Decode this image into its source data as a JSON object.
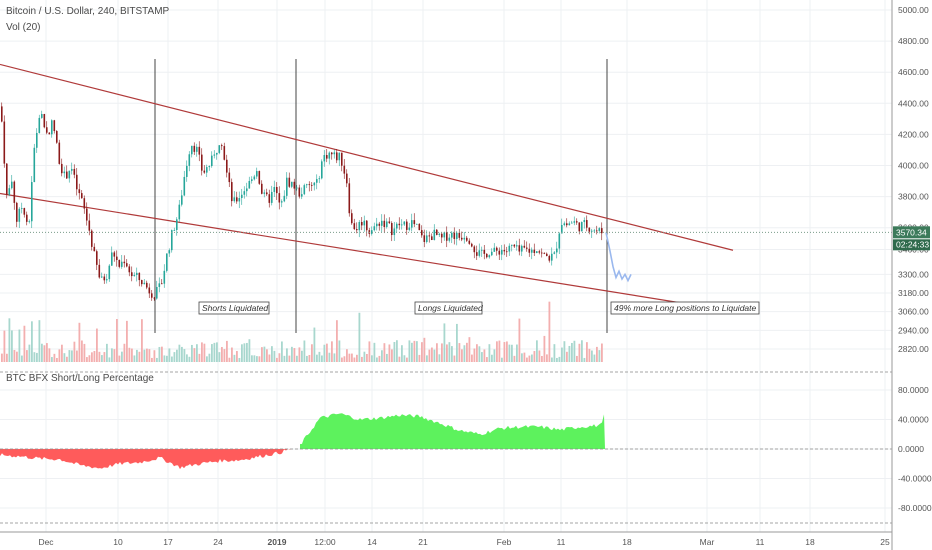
{
  "header": {
    "symbol_line": "Bitcoin / U.S. Dollar, 240, BITSTAMP",
    "volume_label": "Vol (20)"
  },
  "price_badge": {
    "price": "3570.34",
    "countdown": "02:24:33"
  },
  "annotations": {
    "shorts": "Shorts Liquidated",
    "longs": "Longs Liquidated",
    "forecast": "49% more Long positions to Liquidate"
  },
  "indicator": {
    "title": "BTC BFX Short/Long Percentage"
  },
  "colors": {
    "bull": "#26a69a",
    "bear": "#8b1a1a",
    "channel": "#b03a3a",
    "green_fill": "#5df25d",
    "red_fill": "#ff5b5b",
    "projection": "#9ab8ee",
    "badge_price": "#3c7a5a",
    "badge_time": "#2f6a4c"
  },
  "chart_data": [
    {
      "type": "candlestick",
      "title": "Bitcoin / U.S. Dollar, 240, BITSTAMP",
      "ylim": [
        2620,
        5000
      ],
      "y_ticks": [
        5000,
        4800,
        4600,
        4400,
        4200,
        4000,
        3800,
        3600,
        3460,
        3300,
        3180,
        3060,
        2940,
        2820
      ],
      "y_tick_labels": [
        "5000.00",
        "4800.00",
        "4600.00",
        "4400.00",
        "4200.00",
        "4000.00",
        "3800.00",
        "3600.00",
        "3460.00",
        "3300.00",
        "3180.00",
        "3060.00",
        "2940.00",
        "2820.00"
      ],
      "x_tick_labels": [
        "Dec",
        "10",
        "17",
        "24",
        "2019",
        "12:00",
        "14",
        "21",
        "Feb",
        "11",
        "18",
        "Mar",
        "11",
        "18",
        "25"
      ],
      "grid": true,
      "current_price": 3570.34,
      "price_path": [
        [
          0,
          4380
        ],
        [
          6,
          3800
        ],
        [
          11,
          3900
        ],
        [
          16,
          3650
        ],
        [
          22,
          3750
        ],
        [
          28,
          3600
        ],
        [
          34,
          4150
        ],
        [
          40,
          4350
        ],
        [
          46,
          4200
        ],
        [
          52,
          4280
        ],
        [
          58,
          4050
        ],
        [
          64,
          3920
        ],
        [
          70,
          4000
        ],
        [
          76,
          3850
        ],
        [
          82,
          3750
        ],
        [
          88,
          3600
        ],
        [
          94,
          3400
        ],
        [
          100,
          3250
        ],
        [
          106,
          3300
        ],
        [
          112,
          3450
        ],
        [
          118,
          3350
        ],
        [
          124,
          3400
        ],
        [
          130,
          3300
        ],
        [
          136,
          3280
        ],
        [
          142,
          3250
        ],
        [
          148,
          3200
        ],
        [
          154,
          3170
        ],
        [
          160,
          3220
        ],
        [
          166,
          3420
        ],
        [
          172,
          3580
        ],
        [
          178,
          3700
        ],
        [
          184,
          3950
        ],
        [
          190,
          4150
        ],
        [
          196,
          4100
        ],
        [
          202,
          3950
        ],
        [
          208,
          4000
        ],
        [
          214,
          4060
        ],
        [
          220,
          4200
        ],
        [
          226,
          3950
        ],
        [
          232,
          3750
        ],
        [
          238,
          3800
        ],
        [
          244,
          3850
        ],
        [
          250,
          3900
        ],
        [
          256,
          3980
        ],
        [
          262,
          3800
        ],
        [
          268,
          3780
        ],
        [
          274,
          3850
        ],
        [
          280,
          3720
        ],
        [
          286,
          3900
        ],
        [
          292,
          3880
        ],
        [
          298,
          3820
        ],
        [
          304,
          3850
        ],
        [
          310,
          3870
        ],
        [
          316,
          3880
        ],
        [
          322,
          4050
        ],
        [
          328,
          4080
        ],
        [
          334,
          4060
        ],
        [
          340,
          4050
        ],
        [
          346,
          3900
        ],
        [
          350,
          3620
        ],
        [
          356,
          3600
        ],
        [
          362,
          3650
        ],
        [
          368,
          3580
        ],
        [
          374,
          3600
        ],
        [
          380,
          3650
        ],
        [
          386,
          3620
        ],
        [
          392,
          3580
        ],
        [
          398,
          3620
        ],
        [
          404,
          3610
        ],
        [
          410,
          3640
        ],
        [
          416,
          3600
        ],
        [
          422,
          3520
        ],
        [
          428,
          3540
        ],
        [
          434,
          3560
        ],
        [
          440,
          3520
        ],
        [
          446,
          3550
        ],
        [
          452,
          3560
        ],
        [
          458,
          3540
        ],
        [
          464,
          3560
        ],
        [
          470,
          3520
        ],
        [
          476,
          3440
        ],
        [
          482,
          3420
        ],
        [
          488,
          3450
        ],
        [
          494,
          3440
        ],
        [
          500,
          3460
        ],
        [
          506,
          3450
        ],
        [
          512,
          3480
        ],
        [
          518,
          3440
        ],
        [
          524,
          3460
        ],
        [
          530,
          3450
        ],
        [
          536,
          3470
        ],
        [
          542,
          3420
        ],
        [
          548,
          3410
        ],
        [
          554,
          3420
        ],
        [
          560,
          3640
        ],
        [
          566,
          3620
        ],
        [
          572,
          3640
        ],
        [
          578,
          3610
        ],
        [
          584,
          3620
        ],
        [
          590,
          3600
        ],
        [
          596,
          3580
        ],
        [
          602,
          3570
        ]
      ],
      "projection_path": [
        [
          606,
          3570
        ],
        [
          610,
          3450
        ],
        [
          613,
          3350
        ],
        [
          616,
          3280
        ],
        [
          619,
          3320
        ],
        [
          622,
          3270
        ],
        [
          625,
          3300
        ],
        [
          628,
          3260
        ],
        [
          631,
          3300
        ]
      ],
      "vertical_markers": [
        155,
        296,
        607
      ],
      "channel_lines": [
        {
          "from": [
            0,
            4650
          ],
          "to": [
            733,
            3455
          ]
        },
        {
          "from": [
            0,
            3820
          ],
          "to": [
            726,
            3070
          ]
        }
      ],
      "series": [
        {
          "name": "Vol (20)"
        }
      ]
    },
    {
      "type": "area",
      "title": "BTC BFX Short/Long Percentage",
      "ylim": [
        -100,
        100
      ],
      "y_ticks": [
        80,
        40,
        0,
        -40,
        -80
      ],
      "y_tick_labels": [
        "80.0000",
        "40.0000",
        "0.0000",
        "-40.0000",
        "-80.0000"
      ],
      "values": [
        [
          0,
          -8
        ],
        [
          20,
          -10
        ],
        [
          40,
          -13
        ],
        [
          60,
          -14
        ],
        [
          80,
          -22
        ],
        [
          100,
          -26
        ],
        [
          120,
          -20
        ],
        [
          140,
          -18
        ],
        [
          160,
          -12
        ],
        [
          180,
          -25
        ],
        [
          200,
          -20
        ],
        [
          220,
          -16
        ],
        [
          240,
          -15
        ],
        [
          260,
          -10
        ],
        [
          280,
          -5
        ],
        [
          300,
          5
        ],
        [
          320,
          42
        ],
        [
          340,
          48
        ],
        [
          360,
          40
        ],
        [
          380,
          42
        ],
        [
          400,
          46
        ],
        [
          420,
          44
        ],
        [
          440,
          35
        ],
        [
          460,
          25
        ],
        [
          480,
          20
        ],
        [
          500,
          28
        ],
        [
          520,
          30
        ],
        [
          540,
          30
        ],
        [
          560,
          26
        ],
        [
          580,
          30
        ],
        [
          600,
          32
        ],
        [
          605,
          48
        ]
      ]
    }
  ]
}
